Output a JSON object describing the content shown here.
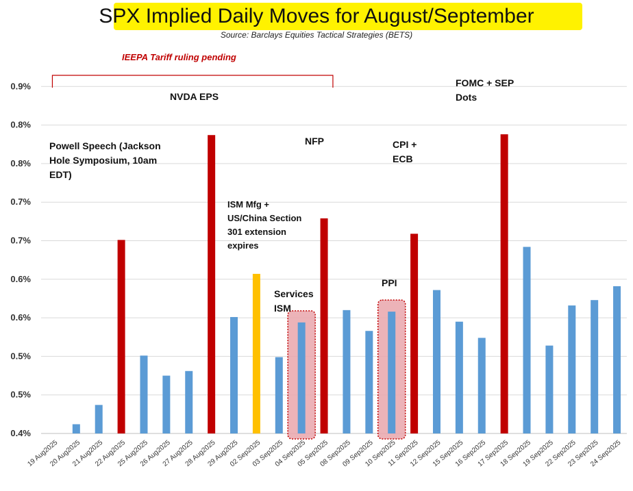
{
  "chart_data": {
    "type": "bar",
    "title": "SPX Implied Daily Moves for August/September",
    "subtitle": "Source: Barclays Equities Tactical Strategies (BETS)",
    "ylim": [
      0.4,
      0.9
    ],
    "yticks": [
      0.4,
      0.45,
      0.5,
      0.55,
      0.6,
      0.65,
      0.7,
      0.75,
      0.8,
      0.85
    ],
    "yticklabels": [
      "0.4%",
      "0.5%",
      "0.5%",
      "0.6%",
      "0.6%",
      "0.7%",
      "0.7%",
      "0.8%",
      "0.8%",
      "0.9%"
    ],
    "grid": true,
    "categories": [
      "19 Aug2025",
      "20 Aug2025",
      "21 Aug2025",
      "22 Aug2025",
      "25 Aug2025",
      "26 Aug2025",
      "27 Aug2025",
      "28 Aug2025",
      "29 Aug2025",
      "02 Sep2025",
      "03 Sep2025",
      "04 Sep2025",
      "05 Sep2025",
      "08 Sep2025",
      "09 Sep2025",
      "10 Sep2025",
      "11 Sep2025",
      "12 Sep2025",
      "15 Sep2025",
      "16 Sep2025",
      "17 Sep2025",
      "18 Sep2025",
      "19 Sep2025",
      "22 Sep2025",
      "23 Sep2025",
      "24 Sep2025"
    ],
    "values": [
      null,
      0.412,
      0.437,
      0.651,
      0.501,
      0.475,
      0.481,
      0.787,
      0.551,
      0.607,
      0.499,
      0.544,
      0.679,
      0.56,
      0.533,
      0.558,
      0.659,
      0.586,
      0.545,
      0.524,
      0.788,
      0.642,
      0.514,
      0.566,
      0.573,
      0.591
    ],
    "colors": [
      "#5b9bd5",
      "#5b9bd5",
      "#5b9bd5",
      "#c00000",
      "#5b9bd5",
      "#5b9bd5",
      "#5b9bd5",
      "#c00000",
      "#5b9bd5",
      "#ffc000",
      "#5b9bd5",
      "#5b9bd5",
      "#c00000",
      "#5b9bd5",
      "#5b9bd5",
      "#5b9bd5",
      "#c00000",
      "#5b9bd5",
      "#5b9bd5",
      "#5b9bd5",
      "#c00000",
      "#5b9bd5",
      "#5b9bd5",
      "#5b9bd5",
      "#5b9bd5",
      "#5b9bd5"
    ],
    "highlight_boxes": [
      11,
      15
    ],
    "annotations": [
      {
        "name": "powell",
        "lines": [
          "Powell Speech (Jackson",
          "Hole Symposium, 10am",
          "EDT)"
        ]
      },
      {
        "name": "nvda",
        "lines": [
          "NVDA EPS"
        ]
      },
      {
        "name": "ism-mfg",
        "lines": [
          "ISM Mfg +",
          "US/China Section",
          "301 extension",
          "expires"
        ]
      },
      {
        "name": "services-ism",
        "lines": [
          "Services",
          "ISM"
        ]
      },
      {
        "name": "nfp",
        "lines": [
          "NFP"
        ]
      },
      {
        "name": "cpi",
        "lines": [
          "CPI +",
          "ECB"
        ]
      },
      {
        "name": "ppi",
        "lines": [
          "PPI"
        ]
      },
      {
        "name": "fomc",
        "lines": [
          "FOMC + SEP",
          "Dots"
        ]
      }
    ],
    "range_annotation": {
      "label": "IEEPA Tariff ruling pending",
      "from": 0,
      "to": 13
    },
    "colors_key": {
      "blue": "#5b9bd5",
      "red": "#c00000",
      "gold": "#ffc000",
      "box": "#c00000"
    }
  }
}
